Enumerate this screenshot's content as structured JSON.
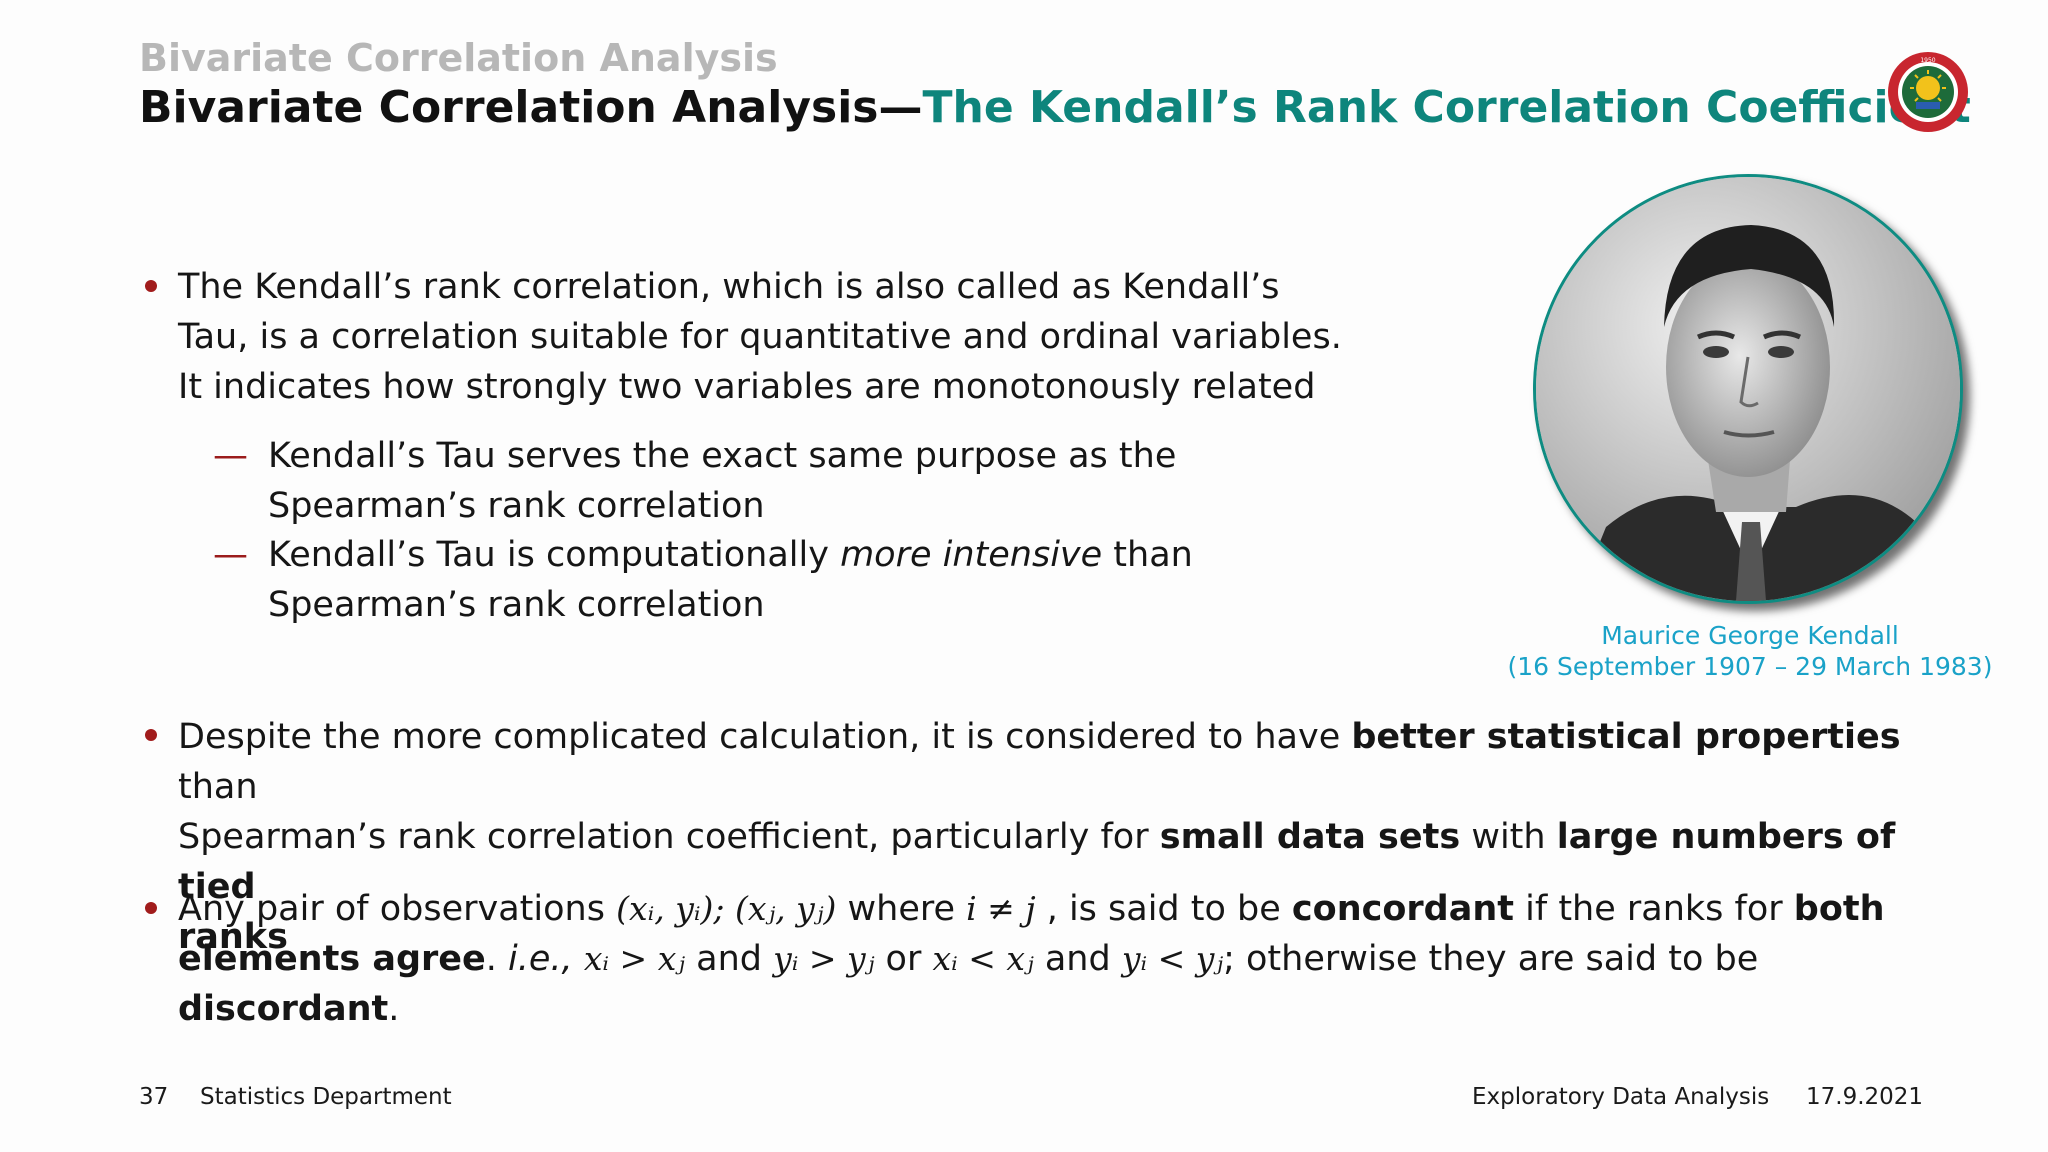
{
  "header": {
    "section_title": "Bivariate Correlation Analysis",
    "title_main": "Bivariate Correlation Analysis",
    "title_sep": "—",
    "title_accent": "The Kendall’s Rank Correlation Coefficient",
    "logo_text_top": "ADDIS ABABA",
    "logo_text_bottom": "ADDIS ABABA UNIVERSITY"
  },
  "bullet1": {
    "lines": [
      "The Kendall’s rank correlation, which is also called as Kendall’s",
      "Tau, is a correlation suitable for quantitative and ordinal variables.",
      "It indicates how strongly two variables are monotonously related"
    ],
    "sub": [
      {
        "dash": "—",
        "lines": [
          "Kendall’s Tau serves the exact same purpose as the",
          "Spearman’s rank correlation"
        ]
      },
      {
        "dash": "—",
        "line1_pre": "Kendall’s Tau is computationally ",
        "line1_em": "more intensive",
        "line1_post": " than",
        "line2": "Spearman’s rank correlation"
      }
    ]
  },
  "portrait": {
    "caption_name": "Maurice George Kendall",
    "caption_dates": "(16 September 1907 – 29 March 1983)"
  },
  "bullet2": {
    "l1_pre": "Despite the more complicated calculation, it is considered to have ",
    "l1_bold": "better statistical properties",
    "l1_post": " than",
    "l2_pre": "Spearman’s rank correlation coefficient, particularly for ",
    "l2_bold1": "small data sets",
    "l2_mid": " with ",
    "l2_bold2": "large numbers of tied",
    "l3_bold": "ranks"
  },
  "bullet3": {
    "l1_pre": "Any pair of observations ",
    "l1_math1": "(xᵢ, yᵢ); (xⱼ, yⱼ)",
    "l1_mid": " where ",
    "l1_math2": "i ≠ j",
    "l1_mid2": " , is said to be ",
    "l1_bold": "concordant",
    "l1_mid3": " if the ranks for ",
    "l1_bold2": "both",
    "l2_bold": "elements agree",
    "l2_dot": ". ",
    "l2_ie": "i.e.,",
    "l2_math1": "xᵢ > xⱼ",
    "l2_and1": " and ",
    "l2_math2": "yᵢ > yⱼ",
    "l2_or": " or ",
    "l2_math3": "xᵢ < xⱼ",
    "l2_and2": " and ",
    "l2_math4": "yᵢ < yⱼ",
    "l2_post": "; otherwise they are said to be",
    "l3_bold": "discordant",
    "l3_post": "."
  },
  "footer": {
    "page_number": "37",
    "department": "Statistics Department",
    "course": "Exploratory Data Analysis",
    "date": "17.9.2021"
  },
  "colors": {
    "accent": "#0e857c",
    "bullet": "#a11c1c",
    "caption": "#1aa2c8",
    "section": "#b7b7b7"
  }
}
